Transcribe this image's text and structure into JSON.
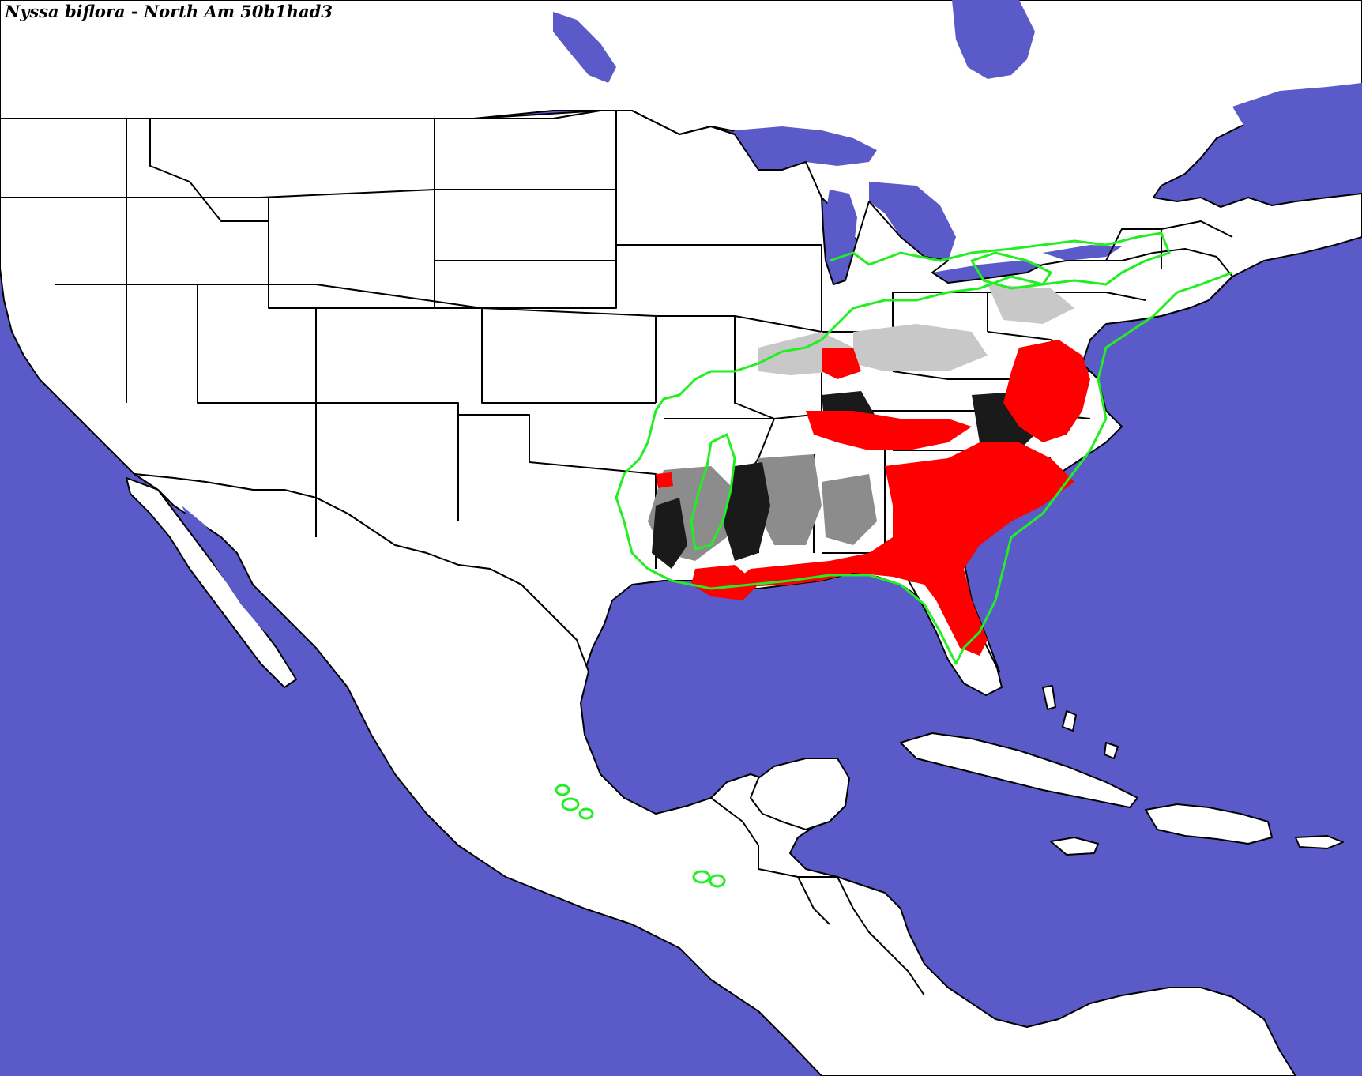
{
  "title": "Nyssa biflora - North Am 50b1had3",
  "colors": {
    "water": "#5a5bc8",
    "land": "#ffffff",
    "border": "#000000",
    "range_outline": "#22ee22",
    "suitability_high": "#ff0000",
    "suitability_dark": "#1a1a1a",
    "suitability_grey": "#8c8c8c"
  },
  "legend": {
    "range_outline": "green line = documented range",
    "suitability": "red / black / grey shading = modeled habitat"
  }
}
